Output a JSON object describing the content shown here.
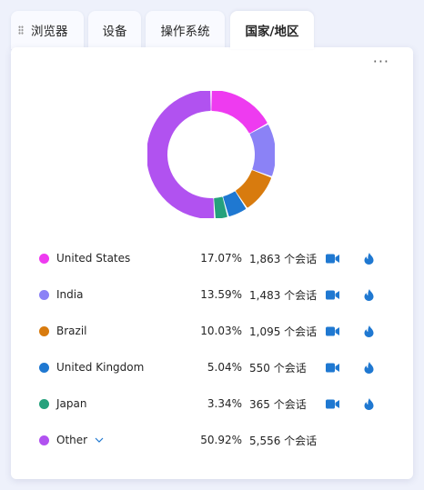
{
  "tabs": [
    {
      "label": "浏览器"
    },
    {
      "label": "设备"
    },
    {
      "label": "操作系统"
    },
    {
      "label": "国家/地区"
    }
  ],
  "more_label": "···",
  "legend": [
    {
      "name": "United States",
      "percent": "17.07%",
      "sessions": "1,863 个会话",
      "color": "#ee3bf0",
      "fraction": 0.1707
    },
    {
      "name": "India",
      "percent": "13.59%",
      "sessions": "1,483 个会话",
      "color": "#8b82f6",
      "fraction": 0.1359
    },
    {
      "name": "Brazil",
      "percent": "10.03%",
      "sessions": "1,095 个会话",
      "color": "#d87b0e",
      "fraction": 0.1003
    },
    {
      "name": "United Kingdom",
      "percent": "5.04%",
      "sessions": "550 个会话",
      "color": "#1f78d1",
      "fraction": 0.0504
    },
    {
      "name": "Japan",
      "percent": "3.34%",
      "sessions": "365 个会话",
      "color": "#25a17c",
      "fraction": 0.0334
    },
    {
      "name": "Other",
      "percent": "50.92%",
      "sessions": "5,556 个会话",
      "color": "#b152f0",
      "fraction": 0.5092
    }
  ],
  "icons": {
    "row_actions": [
      "video-camera-icon",
      "flame-icon"
    ],
    "accent": "#1f78d1"
  }
}
